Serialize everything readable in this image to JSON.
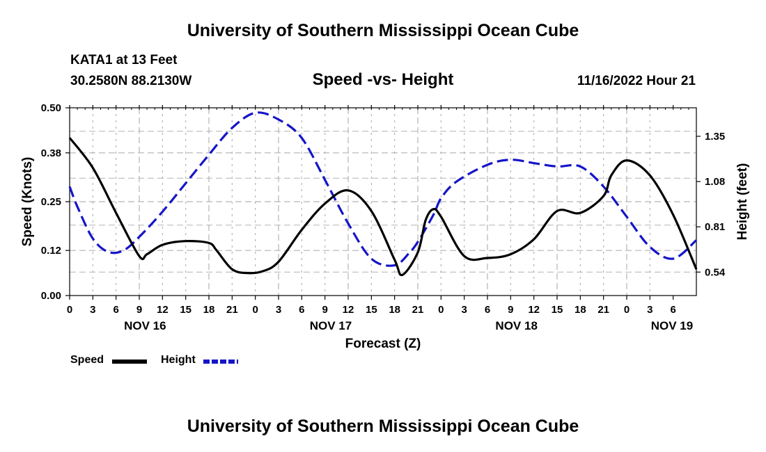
{
  "header": {
    "main_title": "University of Southern Mississippi Ocean Cube",
    "station_name": "KATA1 at 13 Feet",
    "station_coords": "30.2580N  88.2130W",
    "subtitle": "Speed -vs- Height",
    "datetime": "11/16/2022 Hour 21"
  },
  "legend": {
    "speed_label": "Speed",
    "height_label": "Height"
  },
  "footer": {
    "title": "University of Southern Mississippi Ocean Cube"
  },
  "colors": {
    "speed": "#000000",
    "height": "#1515c8",
    "grid": "#b4b4b4"
  },
  "chart_data": {
    "type": "line",
    "xlabel": "Forecast (Z)",
    "ylabel_left": "Speed (Knots)",
    "ylabel_right": "Height (feet)",
    "x_hours_range": [
      0,
      81
    ],
    "x_tick_labels": [
      "0",
      "3",
      "6",
      "9",
      "12",
      "15",
      "18",
      "21",
      "0",
      "3",
      "6",
      "9",
      "12",
      "15",
      "18",
      "21",
      "0",
      "3",
      "6",
      "9",
      "12",
      "15",
      "18",
      "21",
      "0",
      "3",
      "6"
    ],
    "date_labels": [
      {
        "label": "NOV 16",
        "hour": 9.75
      },
      {
        "label": "NOV 17",
        "hour": 33.75
      },
      {
        "label": "NOV 18",
        "hour": 57.75
      },
      {
        "label": "NOV 19",
        "hour": 81
      }
    ],
    "ylim_left": [
      0,
      0.5
    ],
    "y_ticks_left": [
      "0.00",
      "0.12",
      "0.25",
      "0.38",
      "0.50"
    ],
    "ylim_right": [
      0.4,
      1.52
    ],
    "y_ticks_right": [
      {
        "label": "0.54",
        "value": 0.54
      },
      {
        "label": "0.81",
        "value": 0.81
      },
      {
        "label": "1.08",
        "value": 1.08
      },
      {
        "label": "1.35",
        "value": 1.35
      }
    ],
    "series": [
      {
        "name": "Speed",
        "axis": "left",
        "style": "solid",
        "x": [
          0,
          3,
          6,
          9,
          10,
          12,
          15,
          18,
          19,
          21,
          23,
          25,
          27,
          30,
          33,
          36,
          39,
          42,
          43,
          45,
          46,
          47,
          48,
          51,
          54,
          57,
          60,
          63,
          66,
          69,
          70,
          72,
          75,
          78,
          81
        ],
        "y": [
          0.42,
          0.34,
          0.22,
          0.105,
          0.11,
          0.135,
          0.145,
          0.14,
          0.12,
          0.07,
          0.06,
          0.065,
          0.09,
          0.175,
          0.245,
          0.28,
          0.225,
          0.095,
          0.055,
          0.115,
          0.2,
          0.23,
          0.21,
          0.105,
          0.1,
          0.11,
          0.15,
          0.225,
          0.22,
          0.265,
          0.32,
          0.36,
          0.32,
          0.215,
          0.07
        ]
      },
      {
        "name": "Height",
        "axis": "right",
        "style": "dashed",
        "x": [
          0,
          1,
          3,
          5,
          7,
          9,
          12,
          15,
          18,
          21,
          24,
          27,
          30,
          33,
          36,
          39,
          42,
          44,
          45,
          47,
          48,
          50,
          54,
          57,
          60,
          63,
          66,
          69,
          72,
          75,
          78,
          81
        ],
        "y": [
          1.05,
          0.93,
          0.74,
          0.66,
          0.67,
          0.75,
          0.9,
          1.07,
          1.24,
          1.4,
          1.49,
          1.45,
          1.34,
          1.09,
          0.83,
          0.62,
          0.58,
          0.66,
          0.72,
          0.88,
          0.98,
          1.08,
          1.18,
          1.21,
          1.19,
          1.17,
          1.17,
          1.05,
          0.87,
          0.69,
          0.62,
          0.73
        ]
      }
    ]
  }
}
